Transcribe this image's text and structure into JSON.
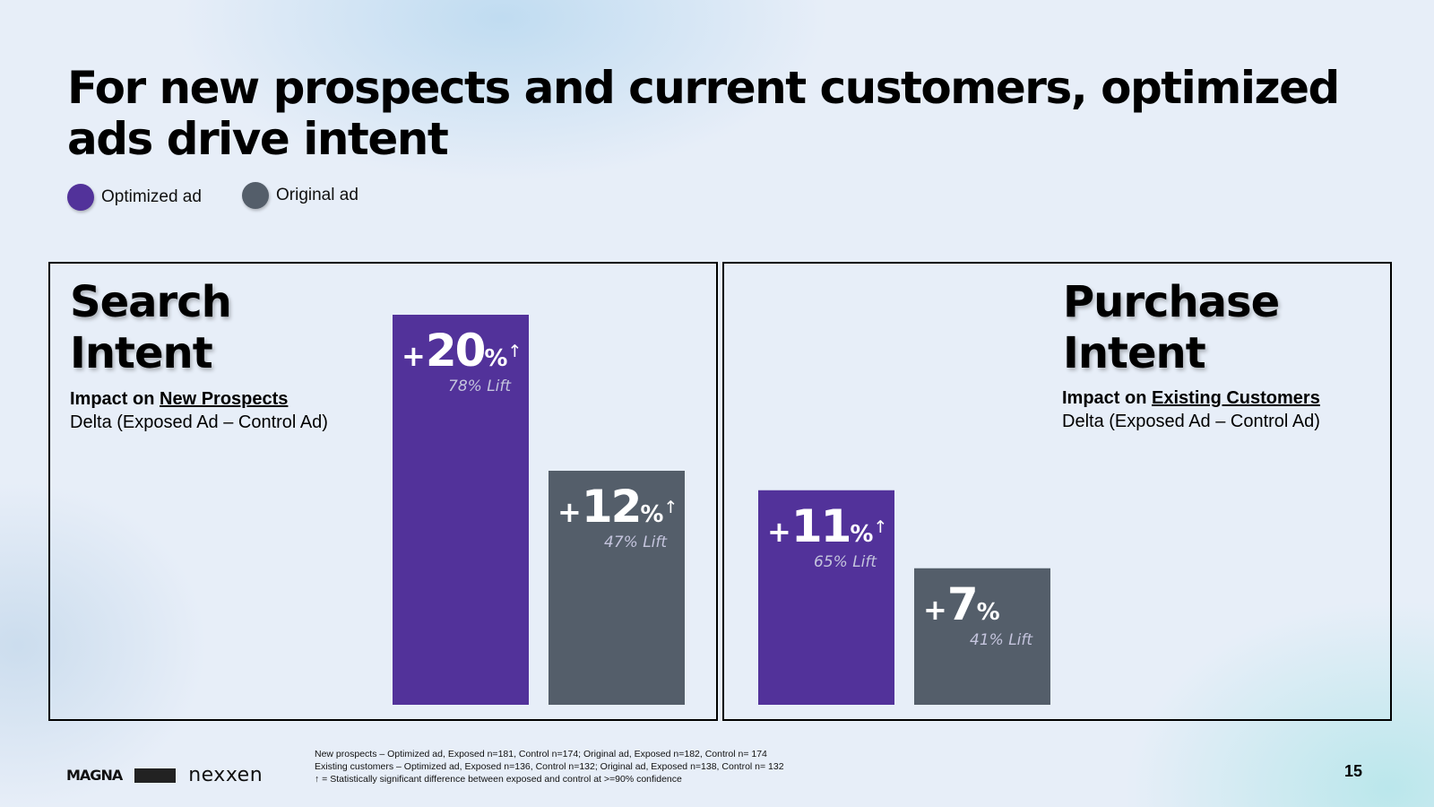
{
  "title": "For new prospects and current customers, optimized ads drive intent",
  "legend": [
    {
      "label": "Optimized ad",
      "color": "#52329a"
    },
    {
      "label": "Original ad",
      "color": "#545e6a"
    }
  ],
  "panels": {
    "search": {
      "title_line1": "Search",
      "title_line2": "Intent",
      "impact_prefix": "Impact on ",
      "impact_target": "New Prospects",
      "delta": "Delta (Exposed Ad – Control Ad)"
    },
    "purchase": {
      "title_line1": "Purchase",
      "title_line2": "Intent",
      "impact_prefix": "Impact on ",
      "impact_target": "Existing Customers",
      "delta": "Delta (Exposed Ad – Control Ad)"
    }
  },
  "chart_data": [
    {
      "type": "bar",
      "title": "Search Intent",
      "subtitle": "Impact on New Prospects",
      "ylabel": "Delta (Exposed Ad – Control Ad)",
      "categories": [
        "Optimized ad",
        "Original ad"
      ],
      "values": [
        20,
        12
      ],
      "labels": [
        "20",
        "12"
      ],
      "lift": [
        "78% Lift",
        "47% Lift"
      ],
      "significant": [
        true,
        true
      ],
      "colors": [
        "#52329a",
        "#545e6a"
      ],
      "ylim": [
        0,
        20
      ]
    },
    {
      "type": "bar",
      "title": "Purchase Intent",
      "subtitle": "Impact on Existing Customers",
      "ylabel": "Delta (Exposed Ad – Control Ad)",
      "categories": [
        "Optimized ad",
        "Original ad"
      ],
      "values": [
        11,
        7
      ],
      "labels": [
        "11",
        "7"
      ],
      "lift": [
        "65% Lift",
        "41% Lift"
      ],
      "significant": [
        true,
        false
      ],
      "colors": [
        "#52329a",
        "#545e6a"
      ],
      "ylim": [
        0,
        20
      ]
    }
  ],
  "bar_symbols": {
    "plus": "+",
    "percent": "%",
    "arrow": "↑"
  },
  "footer": {
    "logo_magna": "MAGNA",
    "logo_nexxen": "nexxen",
    "notes": [
      "New prospects – Optimized ad, Exposed n=181, Control n=174; Original ad, Exposed n=182, Control n= 174",
      "Existing customers – Optimized ad, Exposed n=136, Control n=132; Original ad, Exposed n=138, Control n= 132",
      "↑ = Statistically significant difference between exposed and control at >=90% confidence"
    ],
    "page_number": "15"
  }
}
